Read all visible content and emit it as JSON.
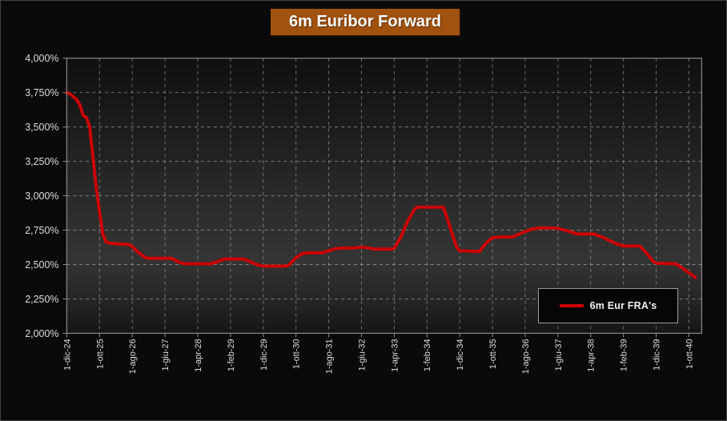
{
  "title": "6m Euribor Forward",
  "legend": {
    "label": "6m Eur FRA's"
  },
  "colors": {
    "page_bg": "#0a0a0a",
    "title_bg": "#a1520e",
    "title_text": "#ffffff",
    "line": "#cc0303",
    "grid": "#c8c8c8",
    "plot_border": "#8a8a8a",
    "axis_label": "#dcdcdc",
    "legend_border": "#9a9a9a",
    "legend_bg": "#060606"
  },
  "chart_data": {
    "type": "line",
    "title": "6m Euribor Forward",
    "xlabel": "",
    "ylabel": "",
    "grid": "dashed",
    "legend_position": "inside-bottom-right",
    "y_min": 2.0,
    "y_max": 4.0,
    "y_ticks": [
      {
        "value": 4.0,
        "label": "4,000%"
      },
      {
        "value": 3.75,
        "label": "3,750%"
      },
      {
        "value": 3.5,
        "label": "3,500%"
      },
      {
        "value": 3.25,
        "label": "3,250%"
      },
      {
        "value": 3.0,
        "label": "3,000%"
      },
      {
        "value": 2.75,
        "label": "2,750%"
      },
      {
        "value": 2.5,
        "label": "2,500%"
      },
      {
        "value": 2.25,
        "label": "2,250%"
      },
      {
        "value": 2.0,
        "label": "2,000%"
      }
    ],
    "x_tick_labels": [
      "1-dic-24",
      "1-ott-25",
      "1-ago-26",
      "1-giu-27",
      "1-apr-28",
      "1-feb-29",
      "1-dic-29",
      "1-ott-30",
      "1-ago-31",
      "1-giu-32",
      "1-apr-33",
      "1-feb-34",
      "1-dic-34",
      "1-ott-35",
      "1-ago-36",
      "1-giu-37",
      "1-apr-38",
      "1-feb-39",
      "1-dic-39",
      "1-ott-40"
    ],
    "x_tick_month_interval": 10,
    "series": [
      {
        "name": "6m Eur FRA's",
        "color": "#cc0303",
        "points_months_value": [
          [
            0,
            3.75
          ],
          [
            1,
            3.74
          ],
          [
            2,
            3.72
          ],
          [
            3,
            3.7
          ],
          [
            4,
            3.66
          ],
          [
            5,
            3.585
          ],
          [
            6,
            3.57
          ],
          [
            7,
            3.5
          ],
          [
            8,
            3.28
          ],
          [
            9,
            3.06
          ],
          [
            10,
            2.88
          ],
          [
            11,
            2.72
          ],
          [
            12,
            2.665
          ],
          [
            13,
            2.655
          ],
          [
            16,
            2.65
          ],
          [
            19,
            2.645
          ],
          [
            20,
            2.63
          ],
          [
            22,
            2.585
          ],
          [
            24,
            2.55
          ],
          [
            25,
            2.545
          ],
          [
            32,
            2.545
          ],
          [
            34,
            2.52
          ],
          [
            36,
            2.505
          ],
          [
            44,
            2.505
          ],
          [
            46,
            2.52
          ],
          [
            48,
            2.54
          ],
          [
            54,
            2.54
          ],
          [
            56,
            2.52
          ],
          [
            58,
            2.5
          ],
          [
            60,
            2.488
          ],
          [
            67,
            2.488
          ],
          [
            68,
            2.5
          ],
          [
            70,
            2.55
          ],
          [
            72,
            2.58
          ],
          [
            74,
            2.585
          ],
          [
            78,
            2.585
          ],
          [
            80,
            2.6
          ],
          [
            82,
            2.615
          ],
          [
            84,
            2.62
          ],
          [
            88,
            2.62
          ],
          [
            90,
            2.627
          ],
          [
            92,
            2.62
          ],
          [
            94,
            2.612
          ],
          [
            99,
            2.612
          ],
          [
            100,
            2.617
          ],
          [
            102,
            2.7
          ],
          [
            104,
            2.81
          ],
          [
            106,
            2.895
          ],
          [
            107,
            2.917
          ],
          [
            115,
            2.917
          ],
          [
            116,
            2.85
          ],
          [
            118,
            2.7
          ],
          [
            119,
            2.63
          ],
          [
            120,
            2.6
          ],
          [
            126,
            2.595
          ],
          [
            128,
            2.655
          ],
          [
            130,
            2.695
          ],
          [
            132,
            2.7
          ],
          [
            136,
            2.7
          ],
          [
            138,
            2.72
          ],
          [
            140,
            2.74
          ],
          [
            142,
            2.757
          ],
          [
            144,
            2.765
          ],
          [
            148,
            2.765
          ],
          [
            150,
            2.763
          ],
          [
            152,
            2.75
          ],
          [
            154,
            2.737
          ],
          [
            156,
            2.722
          ],
          [
            161,
            2.722
          ],
          [
            164,
            2.695
          ],
          [
            166,
            2.67
          ],
          [
            168,
            2.65
          ],
          [
            170,
            2.635
          ],
          [
            175,
            2.635
          ],
          [
            177,
            2.585
          ],
          [
            179,
            2.525
          ],
          [
            180,
            2.51
          ],
          [
            186,
            2.505
          ],
          [
            188,
            2.475
          ],
          [
            190,
            2.44
          ],
          [
            192,
            2.405
          ]
        ]
      }
    ]
  }
}
